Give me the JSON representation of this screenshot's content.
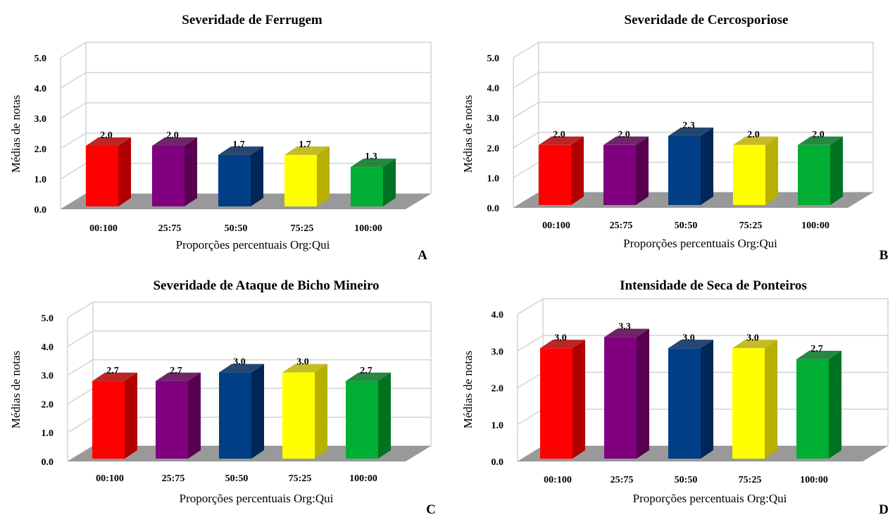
{
  "chart_data": [
    {
      "type": "bar",
      "title": "Severidade de Ferrugem",
      "panel_letter": "A",
      "xlabel": "Proporções percentuais Org:Qui",
      "ylabel": "Médias de notas",
      "categories": [
        "00:100",
        "25:75",
        "50:50",
        "75:25",
        "100:00"
      ],
      "values": [
        2.0,
        2.0,
        1.7,
        1.7,
        1.3
      ],
      "value_labels": [
        "2.0",
        "2.0",
        "1.7",
        "1.7",
        "1.3"
      ],
      "ylim": [
        0,
        5
      ],
      "yticks": [
        "0.0",
        "1.0",
        "2.0",
        "3.0",
        "4.0",
        "5.0"
      ],
      "grid": true,
      "style": "3d-column"
    },
    {
      "type": "bar",
      "title": "Severidade de Cercosporiose",
      "panel_letter": "B",
      "xlabel": "Proporções percentuais Org:Qui",
      "ylabel": "Médias de notas",
      "categories": [
        "00:100",
        "25:75",
        "50:50",
        "75:25",
        "100:00"
      ],
      "values": [
        2.0,
        2.0,
        2.3,
        2.0,
        2.0
      ],
      "value_labels": [
        "2.0",
        "2.0",
        "2.3",
        "2.0",
        "2.0"
      ],
      "ylim": [
        0,
        5
      ],
      "yticks": [
        "0.0",
        "1.0",
        "2.0",
        "3.0",
        "4.0",
        "5.0"
      ],
      "grid": true,
      "style": "3d-column"
    },
    {
      "type": "bar",
      "title": "Severidade de Ataque de Bicho Mineiro",
      "panel_letter": "C",
      "xlabel": "Proporções percentuais Org:Qui",
      "ylabel": "Médias de notas",
      "categories": [
        "00:100",
        "25:75",
        "50:50",
        "75:25",
        "100:00"
      ],
      "values": [
        2.7,
        2.7,
        3.0,
        3.0,
        2.7
      ],
      "value_labels": [
        "2.7",
        "2.7",
        "3.0",
        "3.0",
        "2.7"
      ],
      "ylim": [
        0,
        5
      ],
      "yticks": [
        "0.0",
        "1.0",
        "2.0",
        "3.0",
        "4.0",
        "5.0"
      ],
      "grid": true,
      "style": "3d-column"
    },
    {
      "type": "bar",
      "title": "Intensidade  de Seca de Ponteiros",
      "panel_letter": "D",
      "xlabel": "Proporções percentuais Org:Qui",
      "ylabel": "Médias de notas",
      "categories": [
        "00:100",
        "25:75",
        "50:50",
        "75:25",
        "100:00"
      ],
      "values": [
        3.0,
        3.3,
        3.0,
        3.0,
        2.7
      ],
      "value_labels": [
        "3.0",
        "3.3",
        "3.0",
        "3.0",
        "2.7"
      ],
      "ylim": [
        0,
        4
      ],
      "yticks": [
        "0.0",
        "1.0",
        "2.0",
        "3.0",
        "4.0"
      ],
      "grid": true,
      "style": "3d-column"
    }
  ],
  "colors": {
    "bar_fronts": [
      "#ff0000",
      "#800080",
      "#003f86",
      "#ffff00",
      "#00ae33"
    ],
    "bar_sides": [
      "#b00000",
      "#56004f",
      "#002757",
      "#b8b000",
      "#007320"
    ],
    "floor": "#999999",
    "grid": "#d3d3d3",
    "text": "#000000"
  }
}
